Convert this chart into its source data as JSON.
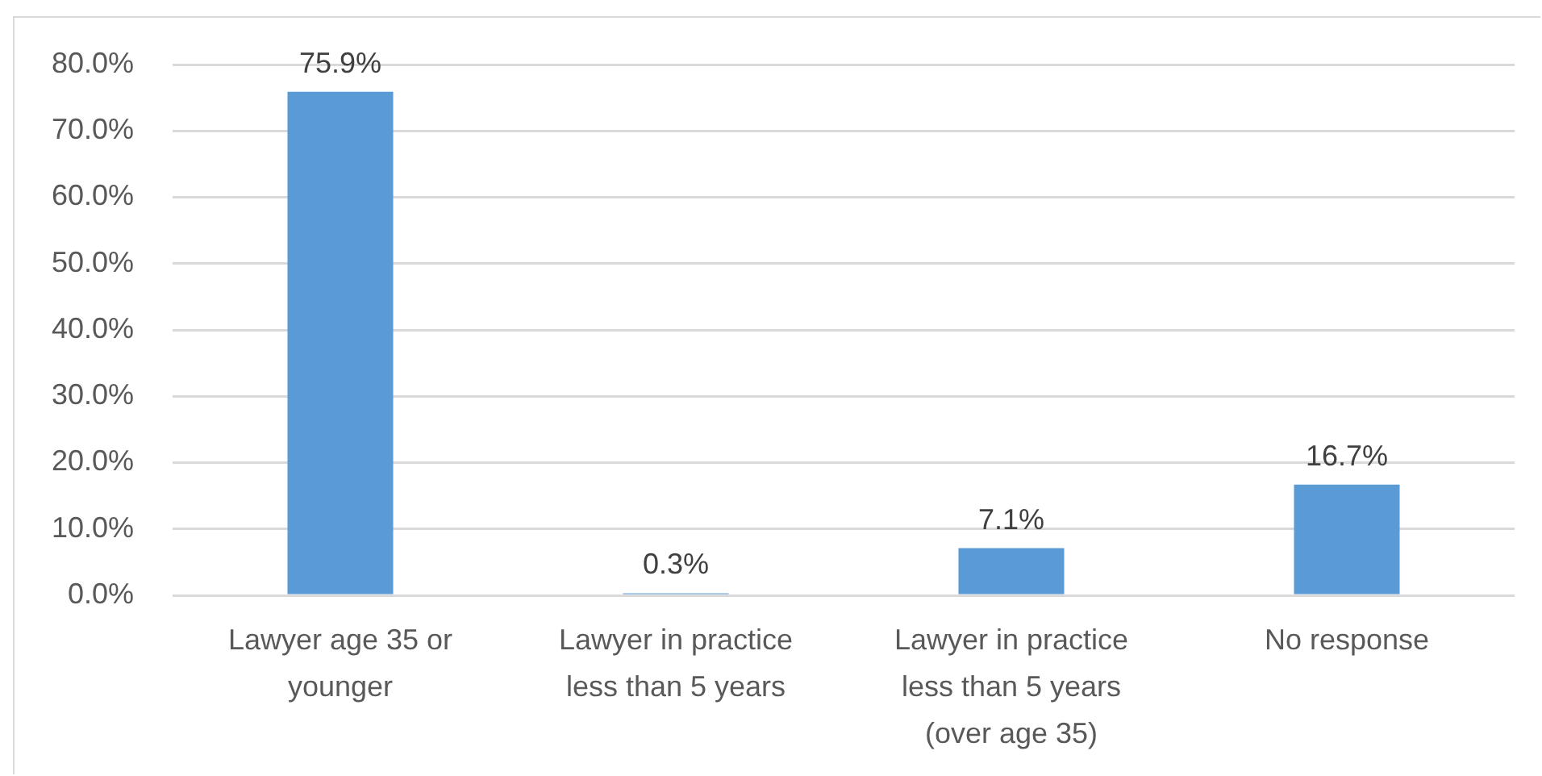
{
  "chart_data": {
    "type": "bar",
    "categories": [
      "Lawyer age 35 or younger",
      "Lawyer in practice less than 5 years",
      "Lawyer in practice less than 5 years (over age 35)",
      "No response"
    ],
    "values": [
      75.9,
      0.3,
      7.1,
      16.7
    ],
    "color": "#5b9bd5",
    "value_labels": [
      "75.9%",
      "0.3%",
      "7.1%",
      "16.7%"
    ],
    "ylim": [
      0,
      80
    ],
    "yticks": [
      {
        "value": 0,
        "label": "0.0%"
      },
      {
        "value": 10,
        "label": "10.0%"
      },
      {
        "value": 20,
        "label": "20.0%"
      },
      {
        "value": 30,
        "label": "30.0%"
      },
      {
        "value": 40,
        "label": "40.0%"
      },
      {
        "value": 50,
        "label": "50.0%"
      },
      {
        "value": 60,
        "label": "60.0%"
      },
      {
        "value": 70,
        "label": "70.0%"
      },
      {
        "value": 80,
        "label": "80.0%"
      }
    ],
    "grid": "y"
  }
}
